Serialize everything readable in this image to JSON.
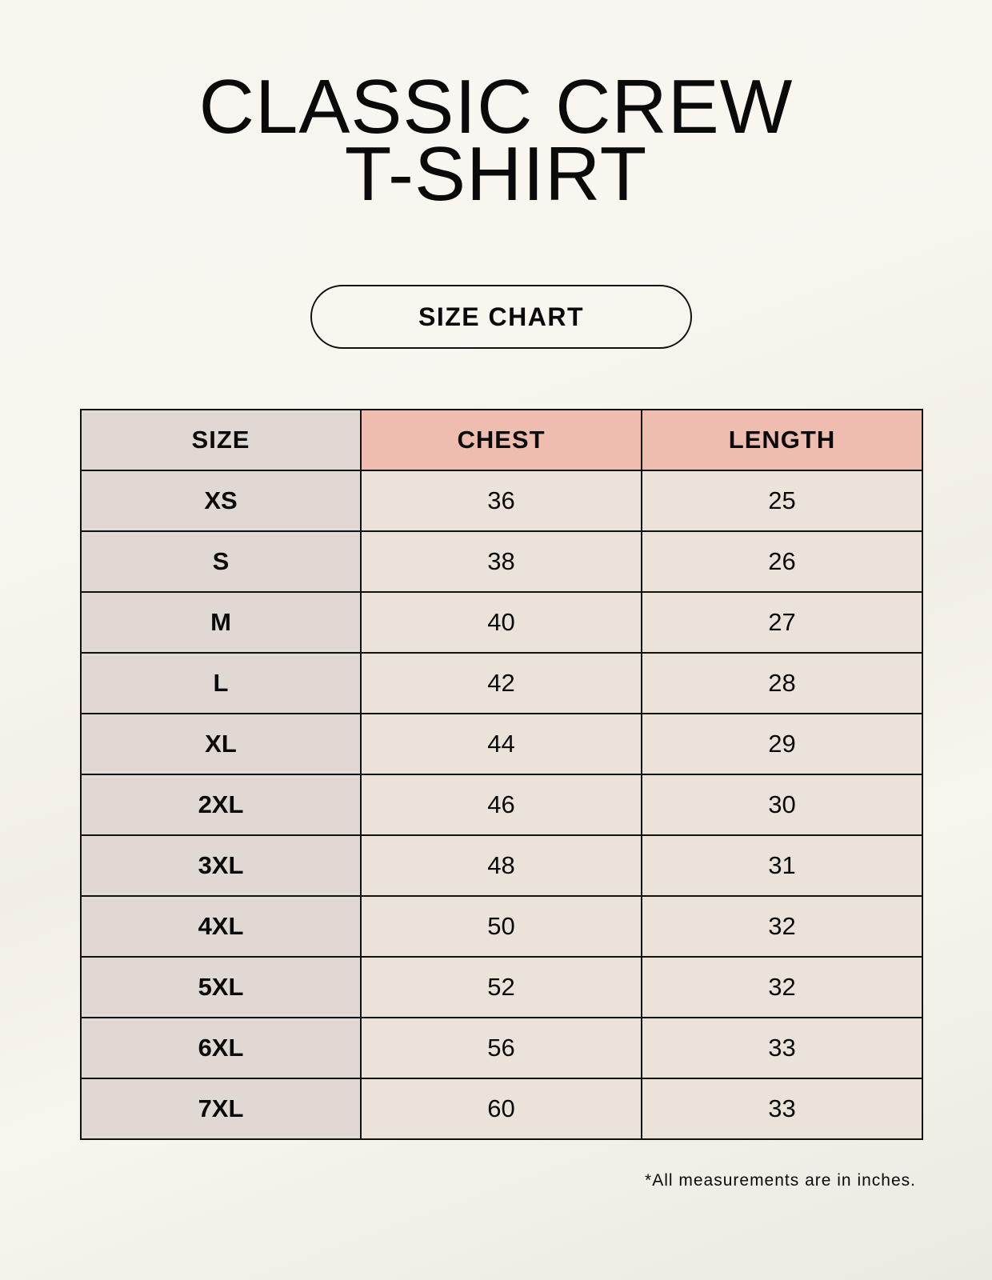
{
  "title": [
    "CLASSIC CREW",
    "T-SHIRT"
  ],
  "badge": "SIZE CHART",
  "table": {
    "headers": [
      "SIZE",
      "CHEST",
      "LENGTH"
    ],
    "rows": [
      [
        "XS",
        "36",
        "25"
      ],
      [
        "S",
        "38",
        "26"
      ],
      [
        "M",
        "40",
        "27"
      ],
      [
        "L",
        "42",
        "28"
      ],
      [
        "XL",
        "44",
        "29"
      ],
      [
        "2XL",
        "46",
        "30"
      ],
      [
        "3XL",
        "48",
        "31"
      ],
      [
        "4XL",
        "50",
        "32"
      ],
      [
        "5XL",
        "52",
        "32"
      ],
      [
        "6XL",
        "56",
        "33"
      ],
      [
        "7XL",
        "60",
        "33"
      ]
    ]
  },
  "footnote": "*All measurements are in inches.",
  "colors": {
    "size_column": "#e0d9d3",
    "header_accent": "#eebdaf",
    "value_cells": "#ebe3d9"
  }
}
